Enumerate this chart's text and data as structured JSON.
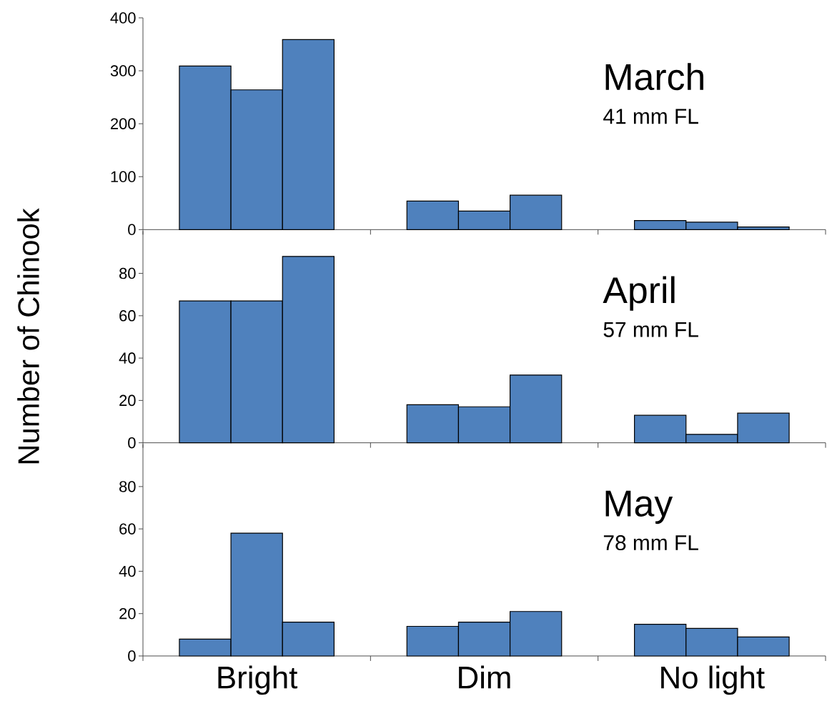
{
  "chart_data": [
    {
      "type": "bar",
      "title": "March",
      "subtitle": "41 mm FL",
      "categories": [
        null,
        null,
        null
      ],
      "ylim": [
        0,
        400
      ],
      "yticks": [
        0,
        100,
        200,
        300,
        400
      ],
      "tick_labels": "y",
      "series": [
        {
          "color": "#4f81bd",
          "values": [
            309,
            54,
            17
          ]
        },
        {
          "color": "#4f81bd",
          "values": [
            264,
            35,
            14
          ]
        },
        {
          "color": "#4f81bd",
          "values": [
            359,
            65,
            5
          ]
        }
      ]
    },
    {
      "type": "bar",
      "title": "April",
      "subtitle": "57 mm FL",
      "ylabel": "Number of Chinook",
      "categories": [
        null,
        null,
        null
      ],
      "ylim": [
        0,
        100
      ],
      "yticks": [
        0,
        20,
        40,
        60,
        80
      ],
      "tick_labels": "y",
      "series": [
        {
          "color": "#4f81bd",
          "values": [
            67,
            18,
            13
          ]
        },
        {
          "color": "#4f81bd",
          "values": [
            67,
            17,
            4
          ]
        },
        {
          "color": "#4f81bd",
          "values": [
            88,
            32,
            14
          ]
        }
      ]
    },
    {
      "type": "bar",
      "title": "May",
      "subtitle": "78 mm FL",
      "categories": [
        "Bright",
        "Dim",
        "No light"
      ],
      "ylim": [
        0,
        100
      ],
      "yticks": [
        0,
        20,
        40,
        60,
        80
      ],
      "series": [
        {
          "color": "#4f81bd",
          "values": [
            8,
            14,
            15
          ]
        },
        {
          "color": "#4f81bd",
          "values": [
            58,
            16,
            13
          ]
        },
        {
          "color": "#4f81bd",
          "values": [
            16,
            21,
            9
          ]
        }
      ]
    }
  ]
}
